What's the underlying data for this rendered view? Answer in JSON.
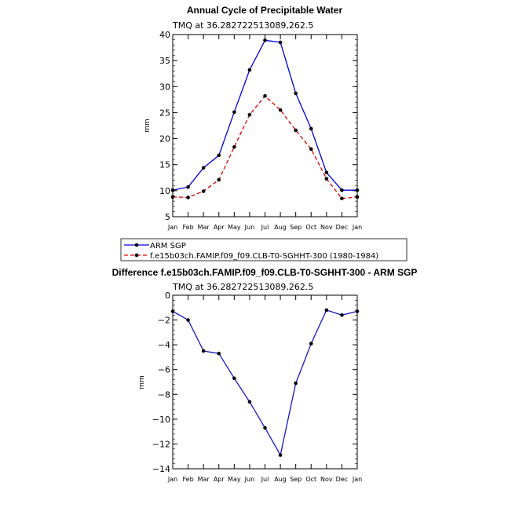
{
  "colors": {
    "arm": "#0000e0",
    "model": "#e00000",
    "diff": "#1515c8"
  },
  "chart_data": [
    {
      "type": "line",
      "title": "Annual Cycle of Precipitable Water",
      "subtitle": "TMQ  at  36.282722513089,262.5",
      "xlabel": "",
      "ylabel": "mm",
      "categories": [
        "Jan",
        "Feb",
        "Mar",
        "Apr",
        "May",
        "Jun",
        "Jul",
        "Aug",
        "Sep",
        "Oct",
        "Nov",
        "Dec",
        "Jan"
      ],
      "ylim": [
        5,
        40
      ],
      "yticks": [
        5,
        10,
        15,
        20,
        25,
        30,
        35,
        40
      ],
      "grid": false,
      "legend_position": "below",
      "series": [
        {
          "name": "ARM SGP",
          "values": [
            10.1,
            10.7,
            14.4,
            16.8,
            25.1,
            33.2,
            38.9,
            38.5,
            28.7,
            21.9,
            13.5,
            10.1,
            10.1
          ]
        },
        {
          "name": "f.e15b03ch.FAMIP.f09_f09.CLB-T0-SGHHT-300 (1980-1984)",
          "values": [
            8.8,
            8.7,
            9.9,
            12.1,
            18.4,
            24.6,
            28.2,
            25.5,
            21.6,
            18.0,
            12.3,
            8.5,
            8.8
          ]
        }
      ]
    },
    {
      "type": "line",
      "title": "Difference f.e15b03ch.FAMIP.f09_f09.CLB-T0-SGHHT-300 - ARM SGP",
      "subtitle": "TMQ  at  36.282722513089,262.5",
      "xlabel": "",
      "ylabel": "mm",
      "categories": [
        "Jan",
        "Feb",
        "Mar",
        "Apr",
        "May",
        "Jun",
        "Jul",
        "Aug",
        "Sep",
        "Oct",
        "Nov",
        "Dec",
        "Jan"
      ],
      "ylim": [
        -14,
        0
      ],
      "yticks": [
        0,
        -2,
        -4,
        -6,
        -8,
        -10,
        -12,
        -14
      ],
      "grid": false,
      "series": [
        {
          "values": [
            -1.3,
            -2.0,
            -4.5,
            -4.7,
            -6.7,
            -8.6,
            -10.7,
            -12.9,
            -7.1,
            -3.9,
            -1.2,
            -1.6,
            -1.3
          ]
        }
      ]
    }
  ]
}
